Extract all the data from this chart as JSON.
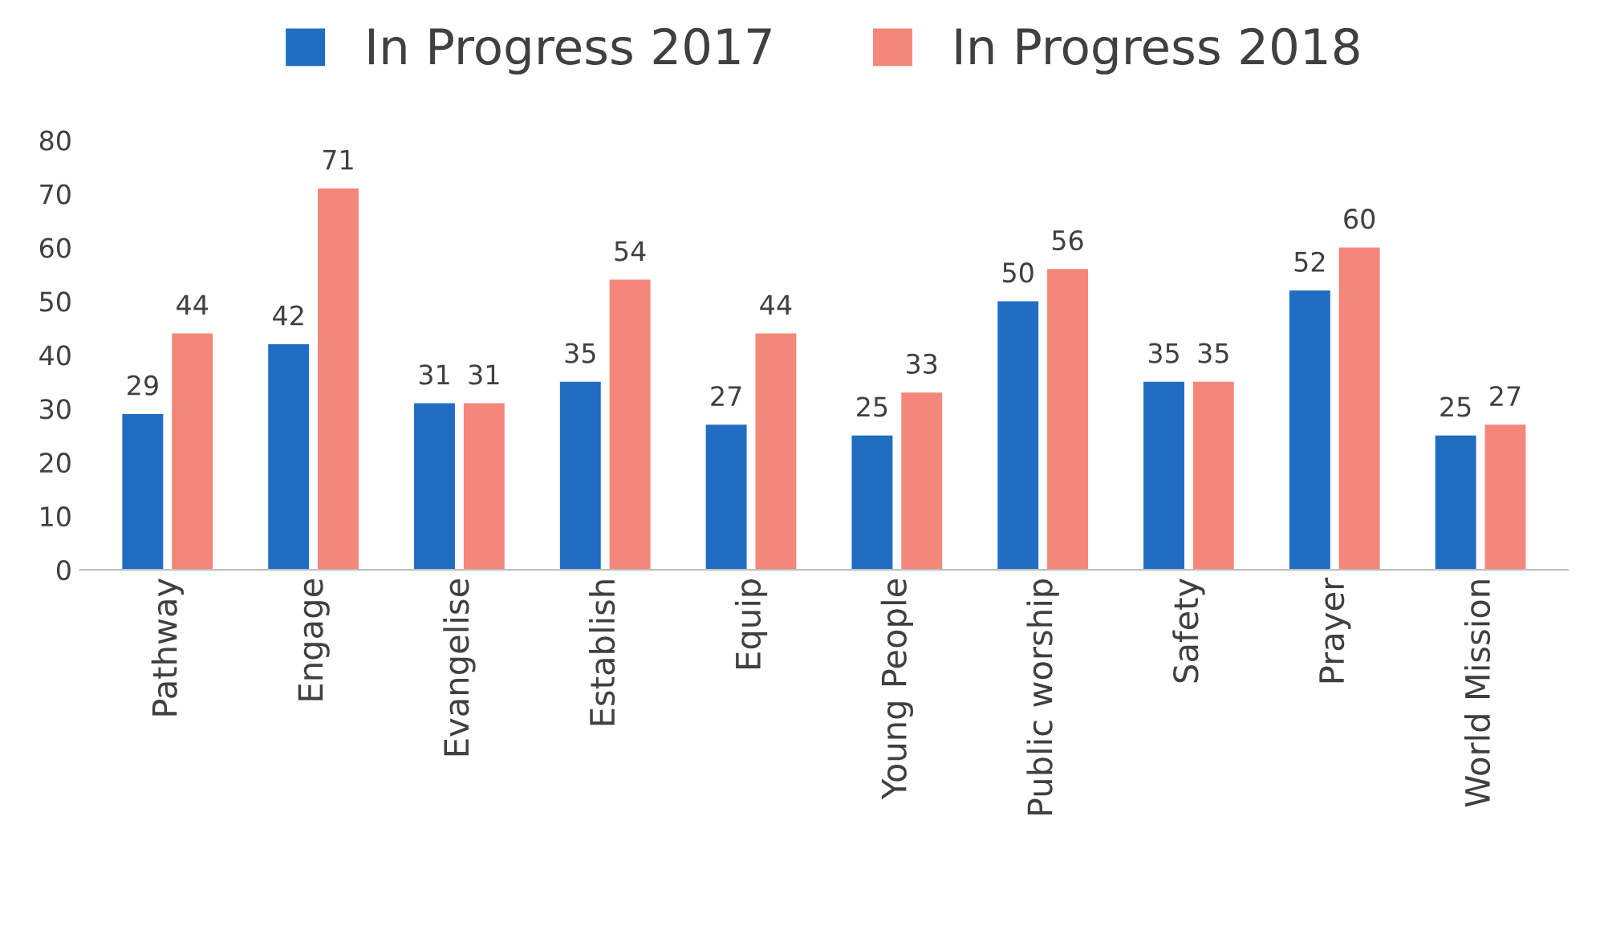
{
  "chart_data": {
    "type": "bar",
    "categories": [
      "Pathway",
      "Engage",
      "Evangelise",
      "Establish",
      "Equip",
      "Young People",
      "Public worship",
      "Safety",
      "Prayer",
      "World Mission"
    ],
    "series": [
      {
        "name": "In Progress 2017",
        "color": "#1f6ec4",
        "values": [
          29,
          42,
          31,
          35,
          27,
          25,
          50,
          35,
          52,
          25
        ]
      },
      {
        "name": "In Progress 2018",
        "color": "#f4877a",
        "values": [
          44,
          71,
          31,
          54,
          44,
          33,
          56,
          35,
          60,
          27
        ]
      }
    ],
    "ylim": [
      0,
      80
    ],
    "yticks": [
      0,
      10,
      20,
      30,
      40,
      50,
      60,
      70,
      80
    ],
    "data_labels": true,
    "legend": "top",
    "grid": false
  }
}
